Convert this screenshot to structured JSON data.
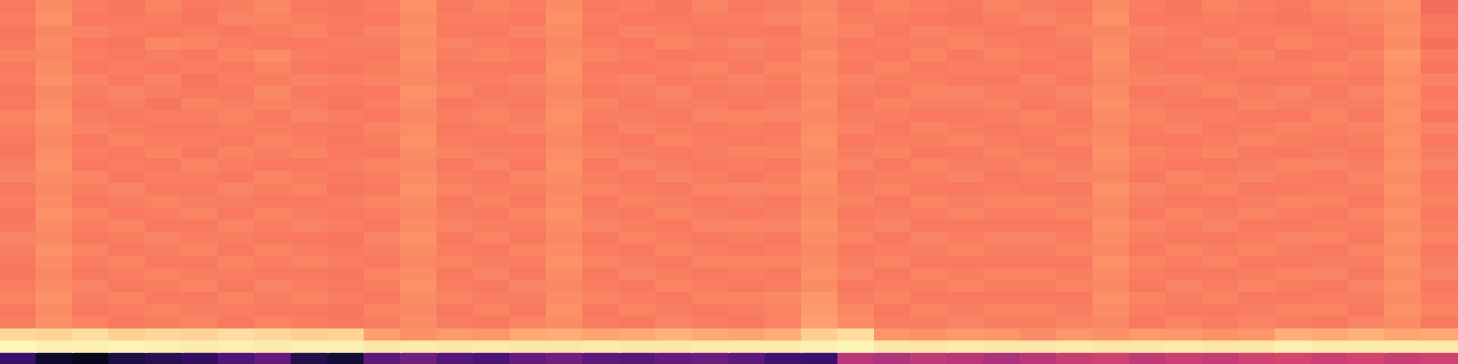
{
  "chart_data": {
    "type": "heatmap",
    "color": "magma",
    "color_range": [
      0,
      100
    ],
    "ylim": [
      0,
      30
    ],
    "tick_labels": false,
    "grid": false,
    "cells": [
      [
        72,
        76,
        73,
        71,
        74,
        72,
        73,
        75,
        72,
        71,
        73,
        77,
        72,
        74,
        73,
        76,
        72,
        73,
        71,
        74,
        72,
        73,
        75,
        72,
        74,
        73,
        72,
        74,
        73,
        72,
        76,
        73,
        71,
        74,
        73,
        72,
        74,
        75,
        77,
        69
      ],
      [
        73,
        77,
        72,
        72,
        73,
        71,
        74,
        74,
        73,
        72,
        72,
        76,
        73,
        73,
        72,
        77,
        73,
        72,
        72,
        73,
        73,
        74,
        76,
        73,
        73,
        72,
        71,
        73,
        74,
        73,
        77,
        72,
        72,
        73,
        72,
        71,
        73,
        74,
        76,
        71
      ],
      [
        71,
        75,
        74,
        73,
        72,
        73,
        72,
        73,
        74,
        72,
        74,
        77,
        72,
        72,
        74,
        76,
        72,
        74,
        73,
        72,
        72,
        72,
        75,
        74,
        72,
        74,
        73,
        72,
        72,
        74,
        75,
        74,
        73,
        72,
        73,
        73,
        72,
        73,
        77,
        72
      ],
      [
        72,
        76,
        72,
        71,
        75,
        74,
        73,
        72,
        72,
        73,
        73,
        76,
        74,
        73,
        72,
        75,
        73,
        72,
        74,
        73,
        74,
        73,
        74,
        72,
        73,
        73,
        74,
        73,
        72,
        73,
        76,
        73,
        72,
        74,
        72,
        74,
        73,
        72,
        76,
        70
      ],
      [
        74,
        75,
        73,
        72,
        73,
        72,
        74,
        76,
        73,
        72,
        72,
        77,
        73,
        74,
        73,
        76,
        74,
        73,
        72,
        72,
        73,
        72,
        76,
        73,
        72,
        74,
        72,
        74,
        73,
        72,
        77,
        72,
        73,
        73,
        74,
        72,
        72,
        74,
        78,
        73
      ],
      [
        72,
        76,
        72,
        73,
        72,
        73,
        72,
        74,
        72,
        71,
        73,
        76,
        72,
        72,
        72,
        77,
        72,
        72,
        73,
        74,
        72,
        74,
        75,
        72,
        74,
        72,
        73,
        73,
        72,
        73,
        76,
        73,
        72,
        72,
        73,
        73,
        74,
        73,
        77,
        71
      ],
      [
        73,
        77,
        74,
        72,
        74,
        71,
        73,
        73,
        74,
        73,
        74,
        75,
        73,
        73,
        74,
        76,
        73,
        74,
        72,
        73,
        74,
        73,
        76,
        74,
        73,
        73,
        72,
        72,
        74,
        72,
        75,
        74,
        74,
        73,
        72,
        72,
        73,
        72,
        76,
        74
      ],
      [
        71,
        75,
        73,
        74,
        73,
        72,
        72,
        75,
        72,
        72,
        72,
        77,
        74,
        72,
        73,
        75,
        72,
        73,
        74,
        72,
        73,
        72,
        75,
        73,
        72,
        74,
        74,
        73,
        73,
        74,
        76,
        72,
        73,
        74,
        73,
        74,
        72,
        74,
        77,
        72
      ],
      [
        72,
        76,
        72,
        73,
        71,
        74,
        73,
        74,
        73,
        71,
        73,
        76,
        72,
        73,
        72,
        76,
        74,
        72,
        73,
        73,
        72,
        73,
        76,
        72,
        74,
        73,
        73,
        74,
        72,
        73,
        77,
        73,
        72,
        72,
        74,
        73,
        73,
        73,
        76,
        73
      ],
      [
        74,
        77,
        73,
        72,
        73,
        73,
        74,
        72,
        74,
        73,
        72,
        75,
        73,
        74,
        73,
        77,
        73,
        73,
        72,
        74,
        74,
        74,
        75,
        73,
        73,
        72,
        72,
        73,
        74,
        72,
        76,
        74,
        73,
        73,
        72,
        72,
        74,
        72,
        77,
        71
      ],
      [
        73,
        76,
        74,
        73,
        72,
        72,
        73,
        73,
        72,
        72,
        74,
        76,
        72,
        73,
        74,
        76,
        72,
        74,
        73,
        72,
        73,
        72,
        76,
        74,
        72,
        74,
        73,
        72,
        73,
        73,
        75,
        73,
        74,
        72,
        73,
        74,
        73,
        74,
        76,
        74
      ],
      [
        72,
        75,
        72,
        74,
        73,
        73,
        72,
        74,
        73,
        71,
        73,
        77,
        73,
        72,
        72,
        75,
        73,
        72,
        74,
        73,
        72,
        73,
        77,
        72,
        73,
        73,
        74,
        73,
        72,
        74,
        76,
        72,
        72,
        73,
        74,
        73,
        72,
        73,
        77,
        72
      ],
      [
        71,
        76,
        73,
        72,
        74,
        72,
        74,
        73,
        74,
        72,
        72,
        76,
        74,
        73,
        73,
        76,
        74,
        73,
        72,
        73,
        74,
        74,
        76,
        73,
        74,
        72,
        72,
        74,
        73,
        72,
        77,
        74,
        73,
        74,
        72,
        72,
        73,
        72,
        76,
        73
      ],
      [
        73,
        77,
        72,
        73,
        72,
        74,
        73,
        72,
        72,
        73,
        74,
        75,
        72,
        74,
        72,
        77,
        72,
        74,
        73,
        72,
        73,
        72,
        75,
        74,
        72,
        74,
        73,
        73,
        74,
        73,
        76,
        73,
        72,
        72,
        73,
        74,
        74,
        73,
        77,
        74
      ],
      [
        74,
        76,
        74,
        72,
        73,
        73,
        72,
        74,
        73,
        72,
        73,
        76,
        73,
        72,
        74,
        76,
        73,
        72,
        74,
        73,
        72,
        73,
        77,
        72,
        73,
        73,
        74,
        72,
        73,
        74,
        75,
        72,
        74,
        73,
        74,
        73,
        72,
        74,
        76,
        72
      ],
      [
        72,
        75,
        73,
        74,
        72,
        72,
        74,
        73,
        74,
        71,
        72,
        77,
        74,
        73,
        73,
        75,
        74,
        73,
        72,
        74,
        74,
        74,
        76,
        73,
        74,
        72,
        72,
        73,
        72,
        72,
        77,
        74,
        73,
        74,
        72,
        72,
        73,
        73,
        77,
        73
      ],
      [
        73,
        76,
        72,
        73,
        74,
        73,
        73,
        72,
        72,
        73,
        74,
        76,
        72,
        74,
        72,
        76,
        72,
        74,
        73,
        72,
        73,
        72,
        75,
        74,
        72,
        74,
        73,
        74,
        74,
        73,
        76,
        73,
        72,
        72,
        73,
        74,
        74,
        72,
        76,
        74
      ],
      [
        71,
        77,
        74,
        72,
        73,
        74,
        72,
        74,
        73,
        72,
        73,
        75,
        73,
        72,
        74,
        77,
        73,
        72,
        74,
        73,
        72,
        73,
        76,
        72,
        73,
        73,
        74,
        73,
        73,
        74,
        75,
        72,
        74,
        73,
        74,
        73,
        72,
        74,
        77,
        72
      ],
      [
        72,
        76,
        73,
        74,
        72,
        72,
        74,
        73,
        74,
        73,
        72,
        76,
        74,
        73,
        73,
        76,
        74,
        73,
        72,
        74,
        74,
        74,
        77,
        73,
        74,
        72,
        72,
        72,
        72,
        72,
        77,
        74,
        73,
        74,
        72,
        72,
        73,
        73,
        76,
        73
      ],
      [
        74,
        75,
        72,
        73,
        74,
        73,
        73,
        72,
        72,
        71,
        74,
        77,
        72,
        74,
        72,
        75,
        72,
        74,
        73,
        72,
        73,
        72,
        76,
        74,
        72,
        74,
        73,
        74,
        74,
        73,
        76,
        73,
        72,
        72,
        73,
        74,
        74,
        72,
        77,
        74
      ],
      [
        73,
        77,
        74,
        72,
        73,
        74,
        72,
        74,
        73,
        72,
        73,
        76,
        73,
        72,
        74,
        76,
        73,
        72,
        74,
        73,
        72,
        73,
        75,
        72,
        73,
        73,
        74,
        73,
        73,
        74,
        75,
        72,
        74,
        73,
        74,
        73,
        72,
        74,
        76,
        72
      ],
      [
        72,
        76,
        73,
        74,
        72,
        72,
        74,
        73,
        74,
        73,
        72,
        75,
        74,
        73,
        73,
        77,
        74,
        73,
        72,
        74,
        74,
        74,
        76,
        73,
        74,
        72,
        72,
        72,
        72,
        72,
        77,
        74,
        73,
        74,
        72,
        72,
        73,
        73,
        77,
        73
      ],
      [
        71,
        75,
        72,
        73,
        74,
        73,
        73,
        72,
        72,
        71,
        74,
        76,
        72,
        74,
        72,
        76,
        72,
        74,
        73,
        72,
        73,
        72,
        77,
        74,
        72,
        74,
        73,
        74,
        74,
        73,
        76,
        73,
        72,
        72,
        73,
        74,
        74,
        72,
        76,
        74
      ],
      [
        73,
        76,
        74,
        72,
        73,
        74,
        72,
        74,
        73,
        72,
        73,
        77,
        73,
        72,
        74,
        75,
        73,
        72,
        74,
        73,
        72,
        73,
        76,
        72,
        73,
        73,
        74,
        73,
        73,
        74,
        75,
        72,
        74,
        73,
        74,
        73,
        72,
        74,
        77,
        72
      ],
      [
        74,
        77,
        73,
        74,
        72,
        72,
        74,
        73,
        74,
        73,
        72,
        76,
        74,
        73,
        73,
        76,
        74,
        73,
        72,
        74,
        74,
        75,
        78,
        73,
        74,
        72,
        72,
        72,
        72,
        72,
        77,
        74,
        73,
        74,
        72,
        72,
        73,
        73,
        76,
        73
      ],
      [
        72,
        76,
        72,
        73,
        74,
        73,
        73,
        72,
        72,
        71,
        74,
        75,
        72,
        74,
        72,
        77,
        72,
        74,
        73,
        72,
        73,
        74,
        79,
        75,
        72,
        74,
        73,
        74,
        74,
        73,
        76,
        73,
        72,
        72,
        73,
        74,
        74,
        72,
        77,
        74
      ],
      [
        73,
        77,
        74,
        72,
        73,
        74,
        72,
        74,
        73,
        72,
        73,
        76,
        73,
        72,
        74,
        76,
        73,
        72,
        74,
        73,
        72,
        74,
        80,
        76,
        73,
        73,
        74,
        73,
        73,
        74,
        75,
        72,
        74,
        73,
        74,
        73,
        72,
        74,
        76,
        72
      ],
      [
        92,
        91,
        93,
        90,
        92,
        91,
        93,
        92,
        90,
        91,
        80,
        77,
        79,
        78,
        82,
        83,
        81,
        82,
        84,
        82,
        81,
        83,
        90,
        93,
        78,
        77,
        79,
        78,
        76,
        78,
        77,
        79,
        78,
        77,
        78,
        83,
        82,
        84,
        81,
        82
      ],
      [
        99,
        97,
        97,
        98,
        97,
        96,
        97,
        96,
        97,
        97,
        95,
        96,
        95,
        96,
        95,
        95,
        96,
        95,
        95,
        96,
        96,
        96,
        97,
        98,
        95,
        95,
        96,
        95,
        95,
        96,
        95,
        95,
        96,
        95,
        95,
        97,
        96,
        96,
        96,
        96
      ],
      [
        20,
        8,
        5,
        12,
        15,
        18,
        25,
        30,
        14,
        10,
        28,
        33,
        26,
        24,
        30,
        33,
        28,
        27,
        30,
        32,
        28,
        22,
        20,
        50,
        48,
        52,
        50,
        47,
        50,
        54,
        56,
        52,
        55,
        53,
        56,
        58,
        55,
        57,
        54,
        56
      ]
    ]
  }
}
